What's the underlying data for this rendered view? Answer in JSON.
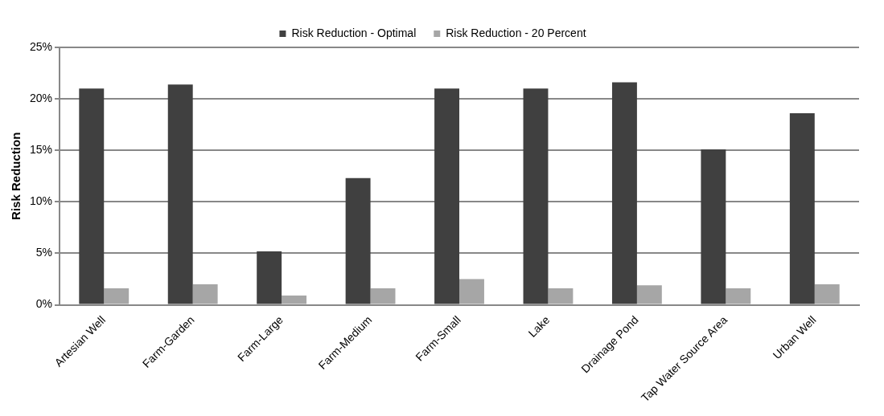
{
  "chart_data": {
    "type": "bar",
    "ylabel": "Risk Reduction",
    "categories": [
      "Artesian Well",
      "Farm-Garden",
      "Farm-Large",
      "Farm-Medium",
      "Farm-Small",
      "Lake",
      "Drainage Pond",
      "Tap Water Source Area",
      "Urban Well"
    ],
    "series": [
      {
        "name": "Risk Reduction - Optimal",
        "color": "#404040",
        "values": [
          21.0,
          21.4,
          5.2,
          12.3,
          21.0,
          21.0,
          21.6,
          15.1,
          18.6
        ]
      },
      {
        "name": "Risk Reduction - 20 Percent",
        "color": "#a6a6a6",
        "values": [
          1.6,
          2.0,
          0.9,
          1.6,
          2.5,
          1.6,
          1.9,
          1.6,
          2.0
        ]
      }
    ],
    "ylim": [
      0,
      25
    ],
    "yticks": [
      {
        "value": 0,
        "label": "0%"
      },
      {
        "value": 5,
        "label": "5%"
      },
      {
        "value": 10,
        "label": "10%"
      },
      {
        "value": 15,
        "label": "15%"
      },
      {
        "value": 20,
        "label": "20%"
      },
      {
        "value": 25,
        "label": "25%"
      }
    ],
    "grid": "y",
    "legend": "top"
  }
}
